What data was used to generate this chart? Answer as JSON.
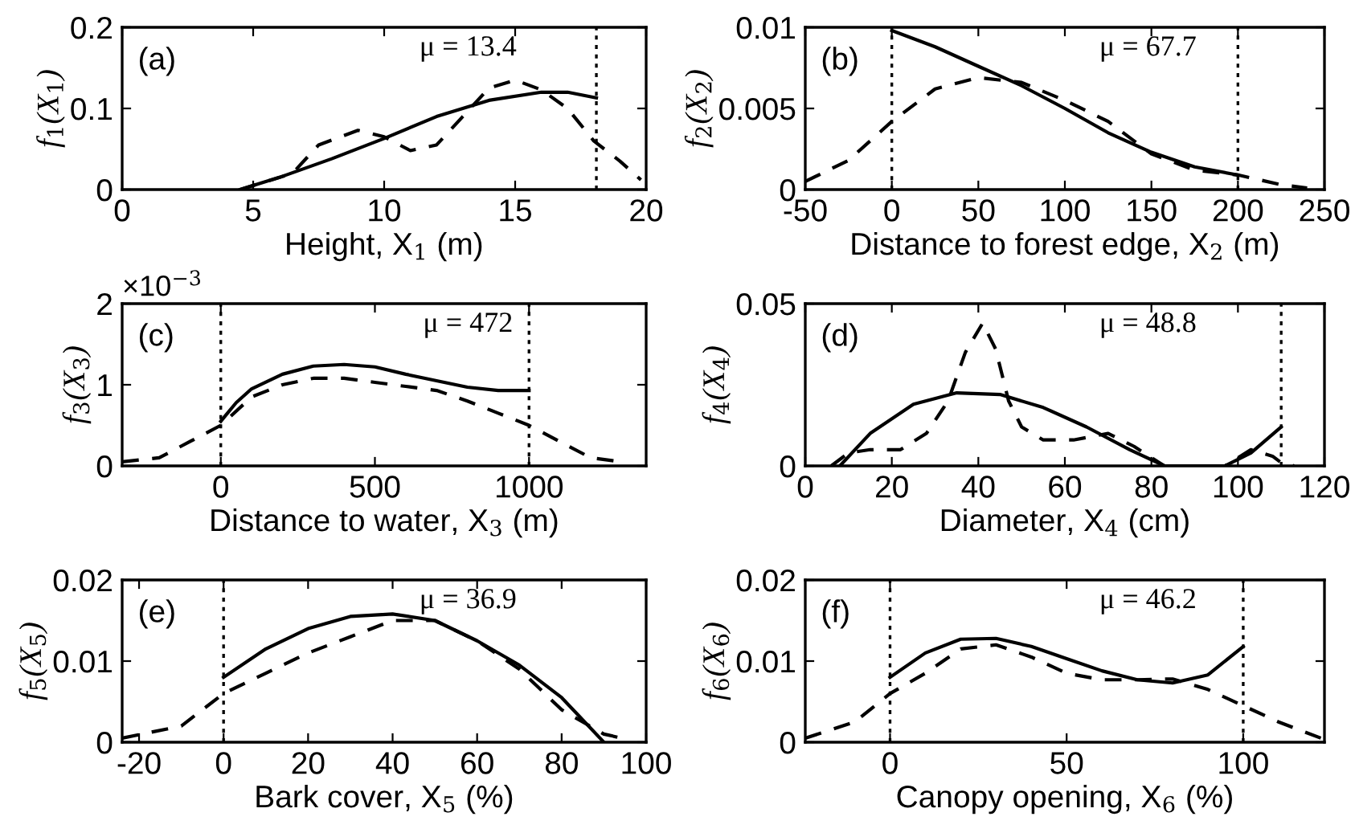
{
  "chart_data": [
    {
      "type": "line",
      "xlabel": "Height, X$_{1}$ (m)",
      "ylabel": "f$_{1}$(X$_{1}$)",
      "annotations": [
        "(a)",
        "μ = 13.4"
      ],
      "xlim": [
        0,
        20
      ],
      "xticks": [
        0,
        5,
        10,
        15,
        20
      ],
      "ylim": [
        0,
        0.2
      ],
      "yticks": [
        0,
        0.1,
        0.2
      ],
      "ref_lines": [
        {
          "axis": "x",
          "value": 18.1,
          "color": "#000000",
          "line_style": "dotted"
        }
      ],
      "series": [
        {
          "color": "#000000",
          "line_style": "solid",
          "x": [
            4.5,
            6,
            8,
            10,
            12,
            14,
            16,
            17,
            18.1
          ],
          "values": [
            0,
            0.015,
            0.038,
            0.063,
            0.09,
            0.11,
            0.12,
            0.12,
            0.113
          ]
        },
        {
          "color": "#000000",
          "line_style": "dashed",
          "x": [
            4.5,
            6.5,
            7.5,
            9,
            10,
            11,
            12,
            13,
            14,
            15,
            16,
            17,
            18,
            19,
            19.8
          ],
          "values": [
            0,
            0.02,
            0.055,
            0.073,
            0.065,
            0.048,
            0.055,
            0.09,
            0.125,
            0.135,
            0.123,
            0.1,
            0.06,
            0.035,
            0.012
          ]
        }
      ]
    },
    {
      "type": "line",
      "xlabel": "Distance to forest edge, X$_{2}$ (m)",
      "ylabel": "f$_{2}$(X$_{2}$)",
      "annotations": [
        "(b)",
        "μ = 67.7"
      ],
      "xlim": [
        -50,
        250
      ],
      "xticks": [
        -50,
        0,
        50,
        100,
        150,
        200,
        250
      ],
      "ylim": [
        0,
        0.01
      ],
      "yticks": [
        0,
        0.005,
        0.01
      ],
      "ref_lines": [
        {
          "axis": "x",
          "value": 0,
          "color": "#000000",
          "line_style": "dotted"
        },
        {
          "axis": "x",
          "value": 200,
          "color": "#000000",
          "line_style": "dotted"
        }
      ],
      "series": [
        {
          "color": "#000000",
          "line_style": "solid",
          "x": [
            0,
            25,
            50,
            75,
            100,
            125,
            150,
            175,
            200
          ],
          "values": [
            0.0098,
            0.0088,
            0.0076,
            0.0064,
            0.005,
            0.0035,
            0.0023,
            0.0014,
            0.0009
          ]
        },
        {
          "color": "#000000",
          "line_style": "dashed",
          "x": [
            -50,
            -25,
            0,
            25,
            50,
            75,
            100,
            125,
            150,
            175,
            200,
            225,
            240
          ],
          "values": [
            0.0005,
            0.0018,
            0.0042,
            0.0062,
            0.0069,
            0.0066,
            0.0055,
            0.0042,
            0.0022,
            0.0012,
            0.0009,
            0.0003,
            0.0001
          ]
        }
      ]
    },
    {
      "type": "line",
      "xlabel": "Distance to water, X$_{3}$ (m)",
      "ylabel": "f$_{3}$(X$_{3}$)",
      "annotations": [
        "(c)",
        "μ = 472",
        "×10$^{−3}$"
      ],
      "xlim": [
        -320,
        1380
      ],
      "xticks": [
        0,
        500,
        1000
      ],
      "ylim": [
        0,
        2
      ],
      "yticks": [
        0,
        1,
        2
      ],
      "ref_lines": [
        {
          "axis": "x",
          "value": 0,
          "color": "#000000",
          "line_style": "dotted"
        },
        {
          "axis": "x",
          "value": 1000,
          "color": "#000000",
          "line_style": "dotted"
        }
      ],
      "series": [
        {
          "color": "#000000",
          "line_style": "solid",
          "x": [
            0,
            50,
            100,
            200,
            300,
            400,
            500,
            600,
            700,
            800,
            900,
            1000
          ],
          "values": [
            0.55,
            0.78,
            0.95,
            1.13,
            1.23,
            1.25,
            1.22,
            1.13,
            1.05,
            0.97,
            0.93,
            0.93
          ]
        },
        {
          "color": "#000000",
          "line_style": "dashed",
          "x": [
            -320,
            -200,
            -100,
            0,
            100,
            200,
            300,
            400,
            500,
            600,
            700,
            800,
            900,
            1000,
            1100,
            1200,
            1300
          ],
          "values": [
            0.05,
            0.1,
            0.3,
            0.5,
            0.85,
            1.0,
            1.08,
            1.08,
            1.03,
            0.98,
            0.93,
            0.8,
            0.65,
            0.5,
            0.3,
            0.1,
            0.05
          ]
        }
      ]
    },
    {
      "type": "line",
      "xlabel": "Diameter, X$_{4}$ (cm)",
      "ylabel": "f$_{4}$(X$_{4}$)",
      "annotations": [
        "(d)",
        "μ = 48.8"
      ],
      "xlim": [
        0,
        120
      ],
      "xticks": [
        0,
        20,
        40,
        60,
        80,
        100,
        120
      ],
      "ylim": [
        0,
        0.05
      ],
      "yticks": [
        0,
        0.05
      ],
      "ref_lines": [
        {
          "axis": "x",
          "value": 110,
          "color": "#000000",
          "line_style": "dotted"
        }
      ],
      "series": [
        {
          "color": "#000000",
          "line_style": "solid",
          "x": [
            8,
            15,
            25,
            35,
            45,
            55,
            65,
            75,
            83,
            97,
            103,
            110
          ],
          "values": [
            0,
            0.01,
            0.019,
            0.0225,
            0.022,
            0.018,
            0.012,
            0.005,
            0,
            0,
            0.004,
            0.012
          ]
        },
        {
          "color": "#000000",
          "line_style": "dashed",
          "x": [
            6,
            10,
            15,
            22,
            28,
            33,
            37,
            41,
            44,
            47,
            50,
            55,
            62,
            70,
            76,
            83,
            97,
            103,
            108,
            110,
            113
          ],
          "values": [
            0,
            0.004,
            0.005,
            0.005,
            0.01,
            0.02,
            0.035,
            0.044,
            0.036,
            0.02,
            0.012,
            0.008,
            0.008,
            0.01,
            0.006,
            0,
            0,
            0.005,
            0.003,
            0.001,
            0
          ]
        }
      ]
    },
    {
      "type": "line",
      "xlabel": "Bark cover, X$_{5}$ (%)",
      "ylabel": "f$_{5}$(X$_{5}$)",
      "annotations": [
        "(e)",
        "μ = 36.9"
      ],
      "xlim": [
        -24,
        100
      ],
      "xticks": [
        -20,
        0,
        20,
        40,
        60,
        80,
        100
      ],
      "ylim": [
        0,
        0.02
      ],
      "yticks": [
        0,
        0.01,
        0.02
      ],
      "ref_lines": [
        {
          "axis": "x",
          "value": 0,
          "color": "#000000",
          "line_style": "dotted"
        }
      ],
      "series": [
        {
          "color": "#000000",
          "line_style": "solid",
          "x": [
            0,
            10,
            20,
            30,
            40,
            50,
            60,
            70,
            80,
            90
          ],
          "values": [
            0.008,
            0.0115,
            0.014,
            0.0155,
            0.0158,
            0.015,
            0.0125,
            0.0095,
            0.0055,
            0
          ]
        },
        {
          "color": "#000000",
          "line_style": "dashed",
          "x": [
            -24,
            -10,
            0,
            10,
            20,
            30,
            40,
            50,
            60,
            70,
            80,
            90,
            96
          ],
          "values": [
            0.0005,
            0.002,
            0.006,
            0.0085,
            0.011,
            0.013,
            0.015,
            0.015,
            0.0125,
            0.009,
            0.004,
            0.001,
            0.0003
          ]
        }
      ]
    },
    {
      "type": "line",
      "xlabel": "Canopy opening, X$_{6}$ (%)",
      "ylabel": "f$_{6}$(X$_{6}$)",
      "annotations": [
        "(f)",
        "μ = 46.2"
      ],
      "xlim": [
        -24,
        123
      ],
      "xticks": [
        0,
        50,
        100
      ],
      "ylim": [
        0,
        0.02
      ],
      "yticks": [
        0,
        0.01,
        0.02
      ],
      "ref_lines": [
        {
          "axis": "x",
          "value": 0,
          "color": "#000000",
          "line_style": "dotted"
        },
        {
          "axis": "x",
          "value": 100,
          "color": "#000000",
          "line_style": "dotted"
        }
      ],
      "series": [
        {
          "color": "#000000",
          "line_style": "solid",
          "x": [
            0,
            10,
            20,
            30,
            40,
            50,
            60,
            70,
            80,
            90,
            100
          ],
          "values": [
            0.008,
            0.011,
            0.0127,
            0.0128,
            0.0118,
            0.0103,
            0.0088,
            0.0077,
            0.0073,
            0.0083,
            0.0118
          ]
        },
        {
          "color": "#000000",
          "line_style": "dashed",
          "x": [
            -24,
            -10,
            0,
            10,
            20,
            30,
            40,
            50,
            60,
            70,
            80,
            90,
            100,
            110,
            122
          ],
          "values": [
            0.0005,
            0.0025,
            0.006,
            0.0085,
            0.0115,
            0.012,
            0.0105,
            0.0085,
            0.0077,
            0.0077,
            0.0078,
            0.0065,
            0.0045,
            0.0025,
            0.0005
          ]
        }
      ]
    }
  ]
}
